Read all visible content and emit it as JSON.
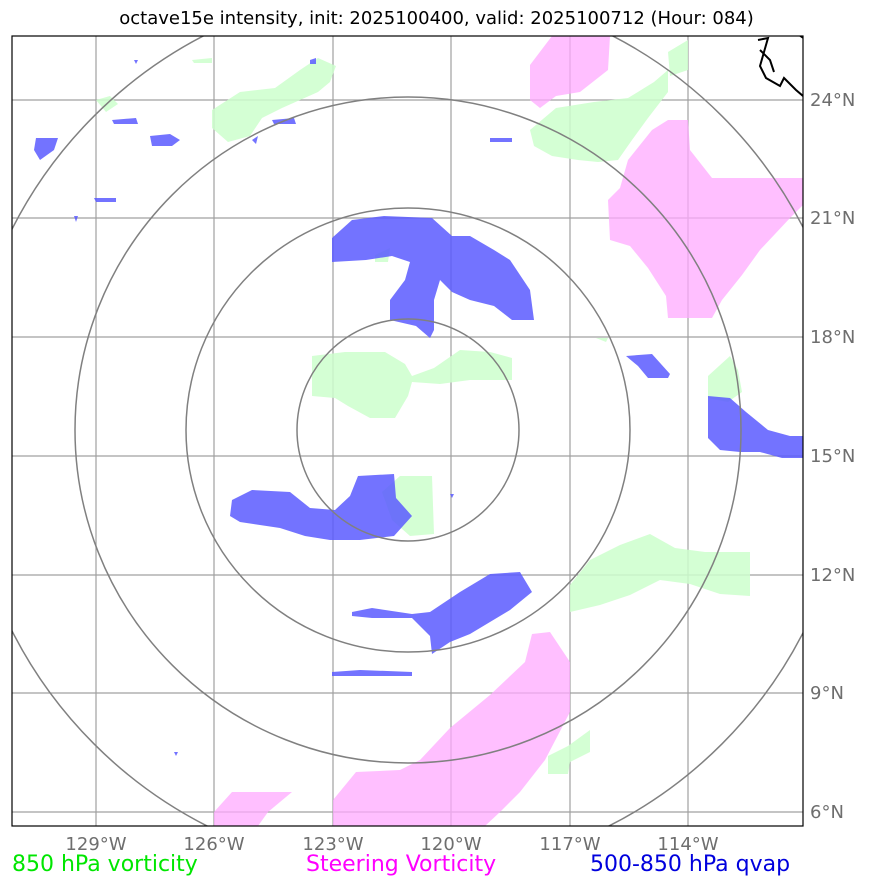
{
  "title": "octave15e intensity, init: 2025100400, valid: 2025100712 (Hour: 084)",
  "lon_labels": [
    "129°W",
    "126°W",
    "123°W",
    "120°W",
    "117°W",
    "114°W"
  ],
  "lat_labels": [
    "24°N",
    "21°N",
    "18°N",
    "15°N",
    "12°N",
    "9°N",
    "6°N"
  ],
  "legend": {
    "vort850": "850 hPa vorticity",
    "steering": "Steering Vorticity",
    "qvap": "500-850 hPa qvap"
  },
  "colors": {
    "vort850": "#ccffcc",
    "steering": "#ffaaff",
    "qvap": "#5a5aff",
    "grid": "#9a9a9a",
    "rings": "#808080"
  }
}
